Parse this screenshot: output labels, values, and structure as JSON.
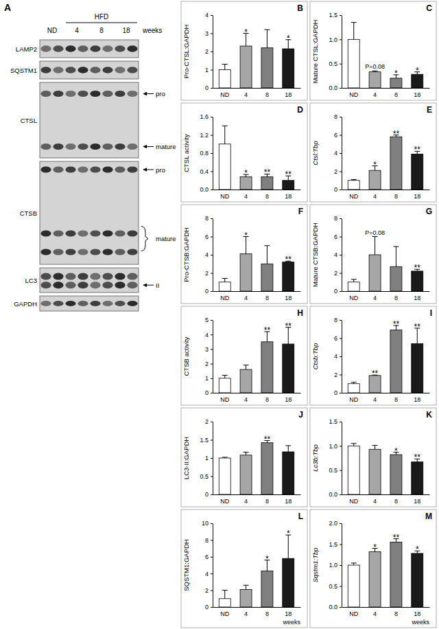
{
  "panel_a": {
    "panel_label": "A",
    "control": "ND",
    "group": "HFD",
    "timepoints": [
      "4",
      "8",
      "18"
    ],
    "timepoint_unit": "weeks",
    "blots": [
      {
        "protein": "LAMP2"
      },
      {
        "protein": "SQSTM1"
      },
      {
        "protein": "CTSL",
        "bands": [
          "pro",
          "mature"
        ]
      },
      {
        "protein": "CTSB",
        "bands": [
          "pro",
          "mature"
        ]
      },
      {
        "protein": "LC3",
        "bands": [
          "II"
        ]
      },
      {
        "protein": "GAPDH"
      }
    ]
  },
  "chart_data": [
    {
      "type": "bar",
      "panel_label": "B",
      "y_label": "Pro-CTSL:GAPDH",
      "categories": [
        "ND",
        "4",
        "8",
        "18"
      ],
      "values": [
        1.0,
        2.3,
        2.2,
        2.15
      ],
      "errors": [
        0.3,
        0.7,
        1.0,
        0.5
      ],
      "annotations": [
        null,
        "*",
        null,
        "*"
      ],
      "colors": [
        "#ffffff",
        "#a6a6a6",
        "#808080",
        "#1a1a1a"
      ],
      "ylim": [
        0,
        4
      ],
      "yticks": [
        0,
        1,
        2,
        3,
        4
      ]
    },
    {
      "type": "bar",
      "panel_label": "C",
      "y_label": "Mature CTSL:GAPDH",
      "categories": [
        "ND",
        "4",
        "8",
        "18"
      ],
      "values": [
        1.0,
        0.33,
        0.2,
        0.28
      ],
      "errors": [
        0.35,
        0.02,
        0.07,
        0.05
      ],
      "annotations": [
        null,
        "P=0.08",
        "*",
        "*"
      ],
      "colors": [
        "#ffffff",
        "#a6a6a6",
        "#808080",
        "#1a1a1a"
      ],
      "ylim": [
        0,
        1.5
      ],
      "yticks": [
        {
          "value": 0,
          "label": "0.0"
        },
        {
          "value": 0.5,
          "label": "0.5"
        },
        {
          "value": 1,
          "label": "1.0"
        },
        {
          "value": 1.5,
          "label": "1.5"
        }
      ]
    },
    {
      "type": "bar",
      "panel_label": "D",
      "y_label": "CTSL activity",
      "categories": [
        "ND",
        "4",
        "8",
        "18"
      ],
      "values": [
        1.0,
        0.28,
        0.28,
        0.2
      ],
      "errors": [
        0.4,
        0.05,
        0.06,
        0.1
      ],
      "annotations": [
        null,
        "*",
        "**",
        "**"
      ],
      "colors": [
        "#ffffff",
        "#a6a6a6",
        "#808080",
        "#1a1a1a"
      ],
      "ylim": [
        0,
        1.6
      ],
      "yticks": [
        {
          "value": 0,
          "label": "0.0"
        },
        {
          "value": 0.4,
          "label": "0.4"
        },
        {
          "value": 0.8,
          "label": "0.8"
        },
        {
          "value": 1.2,
          "label": "1.2"
        },
        {
          "value": 1.6,
          "label": "1.6"
        }
      ]
    },
    {
      "type": "bar",
      "panel_label": "E",
      "y_label": "Ctsl:Tbp",
      "categories": [
        "ND",
        "4",
        "8",
        "18"
      ],
      "values": [
        1.0,
        2.1,
        5.8,
        3.9
      ],
      "errors": [
        0.1,
        0.5,
        0.2,
        0.3
      ],
      "annotations": [
        null,
        "*",
        "**",
        "**"
      ],
      "colors": [
        "#ffffff",
        "#a6a6a6",
        "#808080",
        "#1a1a1a"
      ],
      "ylim": [
        0,
        8
      ],
      "yticks": [
        0,
        2,
        4,
        6,
        8
      ]
    },
    {
      "type": "bar",
      "panel_label": "F",
      "y_label": "Pro-CTSB:GAPDH",
      "categories": [
        "ND",
        "4",
        "8",
        "18"
      ],
      "values": [
        1.0,
        4.1,
        3.0,
        3.2
      ],
      "errors": [
        0.4,
        1.9,
        2.0,
        0.1
      ],
      "annotations": [
        null,
        "*",
        null,
        "**"
      ],
      "colors": [
        "#ffffff",
        "#a6a6a6",
        "#808080",
        "#1a1a1a"
      ],
      "ylim": [
        0,
        8
      ],
      "yticks": [
        0,
        2,
        4,
        6,
        8
      ]
    },
    {
      "type": "bar",
      "panel_label": "G",
      "y_label": "Mature CTSB:GAPDH",
      "categories": [
        "ND",
        "4",
        "8",
        "18"
      ],
      "values": [
        1.0,
        4.0,
        2.7,
        2.2
      ],
      "errors": [
        0.3,
        2.0,
        2.2,
        0.2
      ],
      "annotations": [
        null,
        "P=0.08",
        null,
        "**"
      ],
      "colors": [
        "#ffffff",
        "#a6a6a6",
        "#808080",
        "#1a1a1a"
      ],
      "ylim": [
        0,
        8
      ],
      "yticks": [
        0,
        2,
        4,
        6,
        8
      ]
    },
    {
      "type": "bar",
      "panel_label": "H",
      "y_label": "CTSB activity",
      "categories": [
        "ND",
        "4",
        "8",
        "18"
      ],
      "values": [
        1.0,
        1.6,
        3.5,
        3.35
      ],
      "errors": [
        0.2,
        0.3,
        0.7,
        1.15
      ],
      "annotations": [
        null,
        null,
        "**",
        "**"
      ],
      "colors": [
        "#ffffff",
        "#a6a6a6",
        "#808080",
        "#1a1a1a"
      ],
      "ylim": [
        0,
        5
      ],
      "yticks": [
        0,
        1,
        2,
        3,
        4,
        5
      ]
    },
    {
      "type": "bar",
      "panel_label": "I",
      "y_label": "Ctsb:Tbp",
      "categories": [
        "ND",
        "4",
        "8",
        "18"
      ],
      "values": [
        1.0,
        1.9,
        6.9,
        5.4
      ],
      "errors": [
        0.15,
        0.05,
        0.5,
        1.7
      ],
      "annotations": [
        null,
        "**",
        "**",
        "**"
      ],
      "colors": [
        "#ffffff",
        "#a6a6a6",
        "#808080",
        "#1a1a1a"
      ],
      "ylim": [
        0,
        8
      ],
      "yticks": [
        0,
        2,
        4,
        6,
        8
      ]
    },
    {
      "type": "bar",
      "panel_label": "J",
      "y_label": "LC3-II:GAPDH",
      "categories": [
        "ND",
        "4",
        "8",
        "18"
      ],
      "values": [
        1.0,
        1.08,
        1.42,
        1.17
      ],
      "errors": [
        0.02,
        0.08,
        0.06,
        0.17
      ],
      "annotations": [
        null,
        null,
        "**",
        null
      ],
      "colors": [
        "#ffffff",
        "#a6a6a6",
        "#808080",
        "#1a1a1a"
      ],
      "ylim": [
        0,
        2
      ],
      "yticks": [
        0,
        0.5,
        1,
        1.5,
        2
      ]
    },
    {
      "type": "bar",
      "panel_label": "K",
      "y_label": "Lc3b:Tbp",
      "categories": [
        "ND",
        "4",
        "8",
        "18"
      ],
      "values": [
        1.0,
        0.93,
        0.82,
        0.67
      ],
      "errors": [
        0.05,
        0.08,
        0.05,
        0.06
      ],
      "annotations": [
        null,
        null,
        "*",
        "**"
      ],
      "colors": [
        "#ffffff",
        "#a6a6a6",
        "#808080",
        "#1a1a1a"
      ],
      "ylim": [
        0,
        1.5
      ],
      "yticks": [
        {
          "value": 0,
          "label": "0.0"
        },
        {
          "value": 0.5,
          "label": "0.5"
        },
        {
          "value": 1,
          "label": "1.0"
        },
        {
          "value": 1.5,
          "label": "1.5"
        }
      ]
    },
    {
      "type": "bar",
      "panel_label": "L",
      "y_label": "SQSTM1:GAPDH",
      "x_label": "weeks",
      "categories": [
        "ND",
        "4",
        "8",
        "18"
      ],
      "values": [
        1.0,
        2.1,
        4.3,
        5.8
      ],
      "errors": [
        1.0,
        0.5,
        1.3,
        2.8
      ],
      "annotations": [
        null,
        null,
        "*",
        "*"
      ],
      "colors": [
        "#ffffff",
        "#a6a6a6",
        "#808080",
        "#1a1a1a"
      ],
      "ylim": [
        0,
        10
      ],
      "yticks": [
        0,
        2,
        4,
        6,
        8,
        10
      ]
    },
    {
      "type": "bar",
      "panel_label": "M",
      "y_label": "Sqstm1:Tbp",
      "x_label": "weeks",
      "categories": [
        "ND",
        "4",
        "8",
        "18"
      ],
      "values": [
        1.0,
        1.32,
        1.55,
        1.28
      ],
      "errors": [
        0.05,
        0.08,
        0.08,
        0.06
      ],
      "annotations": [
        null,
        "*",
        "**",
        "*"
      ],
      "colors": [
        "#ffffff",
        "#a6a6a6",
        "#808080",
        "#1a1a1a"
      ],
      "ylim": [
        0,
        2
      ],
      "yticks": [
        {
          "value": 0,
          "label": "0.0"
        },
        {
          "value": 0.5,
          "label": "0.5"
        },
        {
          "value": 1,
          "label": "1.0"
        },
        {
          "value": 1.5,
          "label": "1.5"
        },
        {
          "value": 2,
          "label": "2.0"
        }
      ]
    }
  ]
}
